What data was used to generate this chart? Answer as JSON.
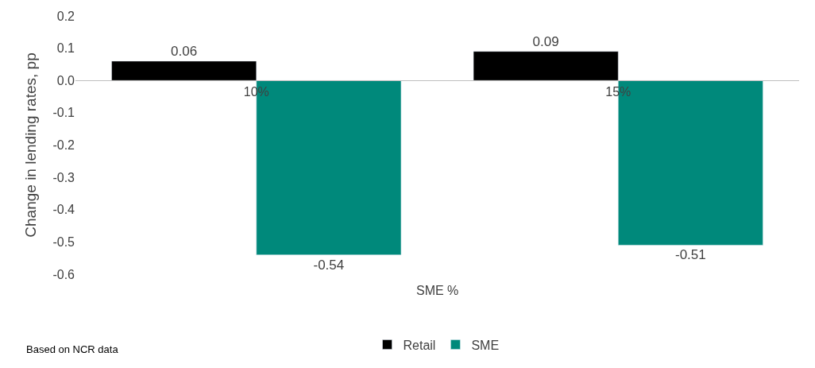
{
  "chart_data": {
    "type": "bar",
    "xlabel": "SME %",
    "ylabel": "Change in lending rates, pp",
    "categories": [
      "10%",
      "15%"
    ],
    "series": [
      {
        "name": "Retail",
        "color": "#000000",
        "values": [
          0.06,
          0.09
        ]
      },
      {
        "name": "SME",
        "color": "#00897b",
        "values": [
          -0.54,
          -0.51
        ]
      }
    ],
    "ylim": [
      -0.6,
      0.2
    ],
    "yticks": [
      0.2,
      0.1,
      {
        "value": 0,
        "label": "0.0"
      },
      -0.1,
      -0.2,
      -0.3,
      -0.4,
      -0.5,
      -0.6
    ],
    "data_labels": true,
    "legend": "bottom",
    "annotations": [
      "Based on NCR data"
    ]
  }
}
